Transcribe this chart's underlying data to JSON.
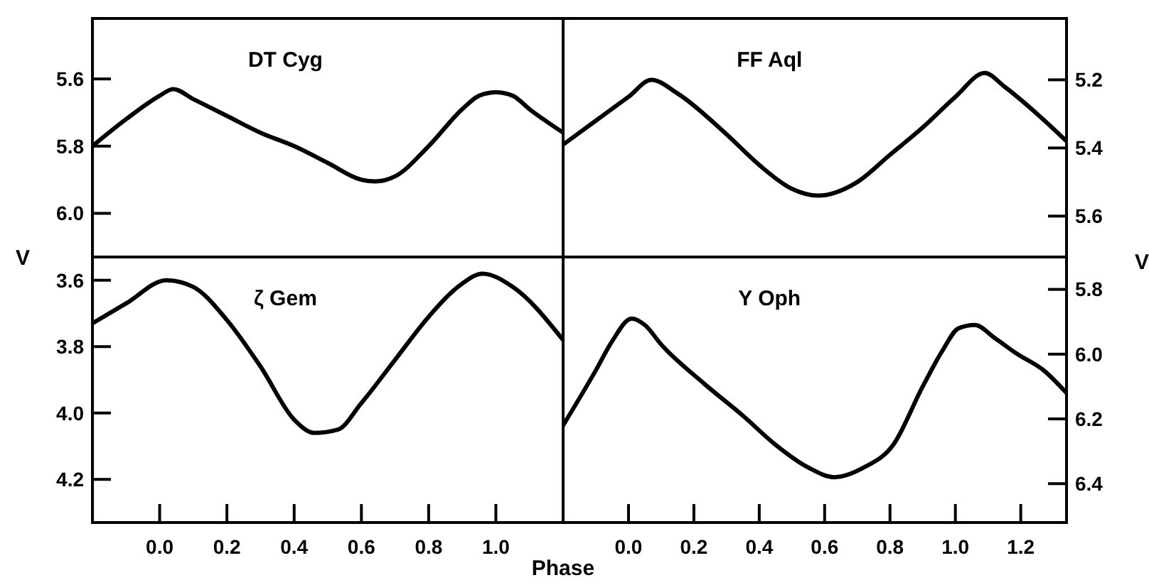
{
  "chart_data": [
    {
      "type": "line",
      "title": "DT Cyg",
      "ylabel": "V",
      "xlim": [
        -0.2,
        1.2
      ],
      "ylim": [
        6.13,
        5.42
      ],
      "yticks": [
        {
          "value": 5.6,
          "label": "5.6"
        },
        {
          "value": 5.8,
          "label": "5.8"
        },
        {
          "value": 6.0,
          "label": "6.0"
        }
      ],
      "tick_labels": "y",
      "series": [
        {
          "color": "#000000",
          "x": [
            -0.2,
            -0.1,
            0.0,
            0.04,
            0.1,
            0.2,
            0.3,
            0.4,
            0.5,
            0.6,
            0.64,
            0.7,
            0.8,
            0.9,
            0.95,
            1.0,
            1.05,
            1.1,
            1.2
          ],
          "values": [
            5.8,
            5.72,
            5.65,
            5.63,
            5.66,
            5.71,
            5.76,
            5.8,
            5.85,
            5.9,
            5.905,
            5.89,
            5.8,
            5.69,
            5.65,
            5.64,
            5.65,
            5.69,
            5.76
          ]
        }
      ]
    },
    {
      "type": "line",
      "title": "FF Aql",
      "y2label": "V",
      "xlim": [
        -0.2,
        1.34
      ],
      "y2lim": [
        5.72,
        5.02
      ],
      "y2ticks": [
        {
          "value": 5.2,
          "label": "5.2"
        },
        {
          "value": 5.4,
          "label": "5.4"
        },
        {
          "value": 5.6,
          "label": "5.6"
        }
      ],
      "tick_labels": "y2",
      "series": [
        {
          "color": "#000000",
          "axis": "y2",
          "x": [
            -0.2,
            -0.1,
            0.0,
            0.07,
            0.15,
            0.3,
            0.4,
            0.5,
            0.58,
            0.7,
            0.8,
            0.9,
            1.0,
            1.09,
            1.15,
            1.25,
            1.34
          ],
          "values": [
            5.39,
            5.32,
            5.25,
            5.2,
            5.24,
            5.36,
            5.45,
            5.52,
            5.54,
            5.5,
            5.42,
            5.34,
            5.25,
            5.18,
            5.22,
            5.3,
            5.38
          ]
        }
      ]
    },
    {
      "type": "line",
      "title": "ζ Gem",
      "xlabel": "Phase",
      "xlim": [
        -0.2,
        1.2
      ],
      "ylim": [
        4.33,
        3.53
      ],
      "xticks": [
        {
          "value": 0,
          "label": "0.0"
        },
        {
          "value": 0.2,
          "label": "0.2"
        },
        {
          "value": 0.4,
          "label": "0.4"
        },
        {
          "value": 0.6,
          "label": "0.6"
        },
        {
          "value": 0.8,
          "label": "0.8"
        },
        {
          "value": 1.0,
          "label": "1.0"
        }
      ],
      "yticks": [
        {
          "value": 3.6,
          "label": "3.6"
        },
        {
          "value": 3.8,
          "label": "3.8"
        },
        {
          "value": 4.0,
          "label": "4.0"
        },
        {
          "value": 4.2,
          "label": "4.2"
        }
      ],
      "series": [
        {
          "color": "#000000",
          "x": [
            -0.2,
            -0.1,
            0.02,
            0.1,
            0.2,
            0.3,
            0.4,
            0.46,
            0.53,
            0.6,
            0.7,
            0.8,
            0.9,
            0.96,
            1.05,
            1.2
          ],
          "values": [
            3.73,
            3.67,
            3.6,
            3.62,
            3.72,
            3.86,
            4.02,
            4.06,
            4.05,
            3.97,
            3.84,
            3.71,
            3.61,
            3.58,
            3.62,
            3.78
          ]
        }
      ]
    },
    {
      "type": "line",
      "title": "Y Oph",
      "xlim": [
        -0.2,
        1.34
      ],
      "y2lim": [
        6.52,
        5.7
      ],
      "xticks": [
        {
          "value": 0,
          "label": "0.0"
        },
        {
          "value": 0.2,
          "label": "0.2"
        },
        {
          "value": 0.4,
          "label": "0.4"
        },
        {
          "value": 0.6,
          "label": "0.6"
        },
        {
          "value": 0.8,
          "label": "0.8"
        },
        {
          "value": 1.0,
          "label": "1.0"
        },
        {
          "value": 1.2,
          "label": "1.2"
        }
      ],
      "y2ticks": [
        {
          "value": 5.8,
          "label": "5.8"
        },
        {
          "value": 6.0,
          "label": "6.0"
        },
        {
          "value": 6.2,
          "label": "6.2"
        },
        {
          "value": 6.4,
          "label": "6.4"
        }
      ],
      "series": [
        {
          "color": "#000000",
          "axis": "y2",
          "x": [
            -0.2,
            -0.1,
            -0.05,
            0.01,
            0.05,
            0.1,
            0.23,
            0.35,
            0.45,
            0.55,
            0.63,
            0.72,
            0.81,
            0.9,
            0.96,
            1.01,
            1.06,
            1.12,
            1.19,
            1.27,
            1.34
          ],
          "values": [
            6.22,
            6.05,
            5.96,
            5.89,
            5.91,
            5.97,
            6.09,
            6.19,
            6.28,
            6.35,
            6.38,
            6.35,
            6.28,
            6.1,
            5.99,
            5.92,
            5.91,
            5.95,
            6.0,
            6.05,
            6.12
          ]
        }
      ]
    }
  ]
}
